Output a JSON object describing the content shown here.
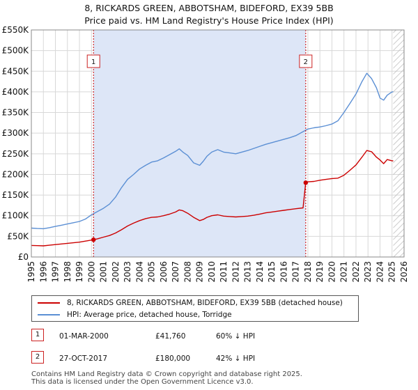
{
  "title_line1": "8, RICKARDS GREEN, ABBOTSHAM, BIDEFORD, EX39 5BB",
  "title_line2": "Price paid vs. HM Land Registry's House Price Index (HPI)",
  "colors": {
    "price_line": "#cc0000",
    "hpi_line": "#5b8fd4",
    "shade": "#dde6f7",
    "marker_box": "#cc2222",
    "grid": "#d8d8d8"
  },
  "legend": {
    "price_label": "8, RICKARDS GREEN, ABBOTSHAM, BIDEFORD, EX39 5BB (detached house)",
    "hpi_label": "HPI: Average price, detached house, Torridge"
  },
  "sales": [
    {
      "marker": "1",
      "date": "01-MAR-2000",
      "price": "£41,760",
      "hpi_diff": "60% ↓ HPI"
    },
    {
      "marker": "2",
      "date": "27-OCT-2017",
      "price": "£180,000",
      "hpi_diff": "42% ↓ HPI"
    }
  ],
  "footer": {
    "line1": "Contains HM Land Registry data © Crown copyright and database right 2025.",
    "line2": "This data is licensed under the Open Government Licence v3.0."
  },
  "chart_data": {
    "type": "line",
    "title": "8, RICKARDS GREEN, ABBOTSHAM, BIDEFORD, EX39 5BB",
    "subtitle": "Price paid vs. HM Land Registry's House Price Index (HPI)",
    "xlabel": "",
    "ylabel": "",
    "xlim": [
      1995,
      2026
    ],
    "ylim": [
      0,
      550000
    ],
    "yticks": [
      0,
      50000,
      100000,
      150000,
      200000,
      250000,
      300000,
      350000,
      400000,
      450000,
      500000,
      550000
    ],
    "ytick_labels": [
      "£0",
      "£50K",
      "£100K",
      "£150K",
      "£200K",
      "£250K",
      "£300K",
      "£350K",
      "£400K",
      "£450K",
      "£500K",
      "£550K"
    ],
    "xticks": [
      1995,
      1996,
      1997,
      1998,
      1999,
      2000,
      2001,
      2002,
      2003,
      2004,
      2005,
      2006,
      2007,
      2008,
      2009,
      2010,
      2011,
      2012,
      2013,
      2014,
      2015,
      2016,
      2017,
      2018,
      2019,
      2020,
      2021,
      2022,
      2023,
      2024,
      2025,
      2026
    ],
    "shaded_range": [
      2000.17,
      2017.82
    ],
    "future_hatch_from": 2025.1,
    "sale_markers": [
      {
        "label": "1",
        "x": 2000.17,
        "y": 41760
      },
      {
        "label": "2",
        "x": 2017.82,
        "y": 180000
      }
    ],
    "series": [
      {
        "name": "8, RICKARDS GREEN, ABBOTSHAM, BIDEFORD, EX39 5BB (detached house)",
        "x": [
          1995,
          1995.5,
          1996,
          1996.5,
          1997,
          1997.5,
          1998,
          1998.5,
          1999,
          1999.5,
          2000.17,
          2000.5,
          2001,
          2001.5,
          2002,
          2002.5,
          2003,
          2003.5,
          2004,
          2004.5,
          2005,
          2005.5,
          2006,
          2006.5,
          2007,
          2007.3,
          2007.6,
          2008,
          2008.5,
          2009,
          2009.3,
          2009.6,
          2010,
          2010.5,
          2011,
          2011.5,
          2012,
          2012.5,
          2013,
          2013.5,
          2014,
          2014.5,
          2015,
          2015.5,
          2016,
          2016.5,
          2017,
          2017.6,
          2017.82,
          2018,
          2018.5,
          2019,
          2019.5,
          2020,
          2020.5,
          2021,
          2021.5,
          2022,
          2022.5,
          2022.9,
          2023.3,
          2023.7,
          2024,
          2024.3,
          2024.6,
          2025,
          2025.1
        ],
        "y": [
          28000,
          27500,
          27000,
          28500,
          30000,
          31500,
          33000,
          34500,
          36000,
          38500,
          41760,
          44000,
          48000,
          52000,
          58000,
          66000,
          75000,
          82000,
          88000,
          93000,
          96000,
          97000,
          100000,
          104000,
          109000,
          114000,
          112000,
          106000,
          96000,
          88000,
          91000,
          96000,
          100000,
          102000,
          99000,
          98000,
          97000,
          98000,
          99000,
          101000,
          104000,
          107000,
          109000,
          111000,
          113000,
          115000,
          117000,
          119000,
          180000,
          182000,
          183000,
          186000,
          188000,
          190000,
          191000,
          198000,
          210000,
          223000,
          242000,
          258000,
          255000,
          242000,
          235000,
          226000,
          236000,
          233000,
          233000
        ]
      },
      {
        "name": "HPI: Average price, detached house, Torridge",
        "x": [
          1995,
          1995.5,
          1996,
          1996.5,
          1997,
          1997.5,
          1998,
          1998.5,
          1999,
          1999.5,
          2000,
          2000.5,
          2001,
          2001.5,
          2002,
          2002.5,
          2003,
          2003.5,
          2004,
          2004.5,
          2005,
          2005.5,
          2006,
          2006.5,
          2007,
          2007.3,
          2007.6,
          2008,
          2008.5,
          2009,
          2009.3,
          2009.6,
          2010,
          2010.5,
          2011,
          2011.5,
          2012,
          2012.5,
          2013,
          2013.5,
          2014,
          2014.5,
          2015,
          2015.5,
          2016,
          2016.5,
          2017,
          2017.5,
          2018,
          2018.5,
          2019,
          2019.5,
          2020,
          2020.5,
          2021,
          2021.5,
          2022,
          2022.5,
          2022.9,
          2023.3,
          2023.7,
          2024,
          2024.3,
          2024.6,
          2025,
          2025.1
        ],
        "y": [
          70000,
          69000,
          68500,
          71000,
          74000,
          77000,
          80000,
          83000,
          86000,
          92000,
          102000,
          110000,
          118000,
          128000,
          145000,
          168000,
          188000,
          200000,
          213000,
          222000,
          230000,
          233000,
          240000,
          248000,
          256000,
          262000,
          254000,
          246000,
          228000,
          222000,
          232000,
          244000,
          254000,
          260000,
          254000,
          252000,
          250000,
          254000,
          258000,
          263000,
          268000,
          273000,
          277000,
          281000,
          285000,
          289000,
          294000,
          302000,
          310000,
          313000,
          315000,
          318000,
          322000,
          330000,
          350000,
          372000,
          395000,
          425000,
          445000,
          432000,
          410000,
          385000,
          380000,
          392000,
          400000,
          400000
        ]
      }
    ]
  }
}
